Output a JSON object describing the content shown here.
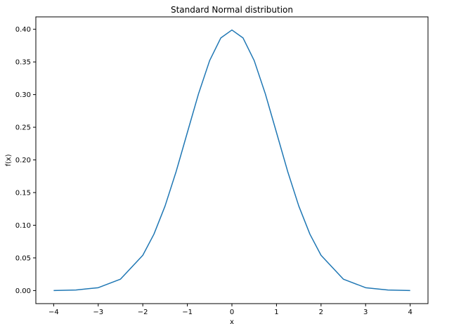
{
  "chart_data": {
    "type": "line",
    "title": "Standard Normal distribution",
    "xlabel": "x",
    "ylabel": "f(x)",
    "xlim": [
      -4.4,
      4.4
    ],
    "ylim": [
      -0.02,
      0.419
    ],
    "xticks": [
      -4,
      -3,
      -2,
      -1,
      0,
      1,
      2,
      3,
      4
    ],
    "xtick_labels": [
      "−4",
      "−3",
      "−2",
      "−1",
      "0",
      "1",
      "2",
      "3",
      "4"
    ],
    "yticks": [
      0.0,
      0.05,
      0.1,
      0.15,
      0.2,
      0.25,
      0.3,
      0.35,
      0.4
    ],
    "ytick_labels": [
      "0.00",
      "0.05",
      "0.10",
      "0.15",
      "0.20",
      "0.25",
      "0.30",
      "0.35",
      "0.40"
    ],
    "grid": false,
    "series": [
      {
        "color": "#1f77b4",
        "x": [
          -4,
          -3.5,
          -3,
          -2.5,
          -2,
          -1.75,
          -1.5,
          -1.25,
          -1,
          -0.75,
          -0.5,
          -0.25,
          0,
          0.25,
          0.5,
          0.75,
          1,
          1.25,
          1.5,
          1.75,
          2,
          2.5,
          3,
          3.5,
          4
        ],
        "y": [
          0.0001,
          0.0009,
          0.0044,
          0.0175,
          0.054,
          0.0863,
          0.1295,
          0.1826,
          0.242,
          0.3011,
          0.3521,
          0.3867,
          0.3989,
          0.3867,
          0.3521,
          0.3011,
          0.242,
          0.1826,
          0.1295,
          0.0863,
          0.054,
          0.0175,
          0.0044,
          0.0009,
          0.0001
        ]
      }
    ]
  }
}
